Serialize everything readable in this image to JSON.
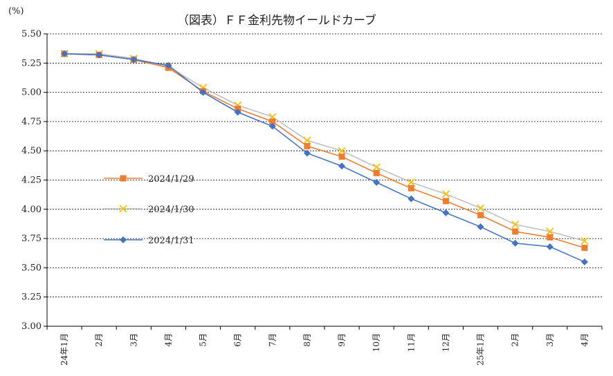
{
  "chart_data": {
    "type": "line",
    "title": "（図表）ＦＦ金利先物イールドカーブ",
    "ylabel": "(%)",
    "xlabel": "",
    "ylim": [
      3.0,
      5.5
    ],
    "yticks": [
      "5.50",
      "5.25",
      "5.00",
      "4.75",
      "4.50",
      "4.25",
      "4.00",
      "3.75",
      "3.50",
      "3.25",
      "3.00"
    ],
    "ytick_values": [
      5.5,
      5.25,
      5.0,
      4.75,
      4.5,
      4.25,
      4.0,
      3.75,
      3.5,
      3.25,
      3.0
    ],
    "categories": [
      "24年1月",
      "2月",
      "3月",
      "4月",
      "5月",
      "6月",
      "7月",
      "8月",
      "9月",
      "10月",
      "11月",
      "12月",
      "25年1月",
      "2月",
      "3月",
      "4月"
    ],
    "grid": true,
    "legend_position": "left-middle",
    "series": [
      {
        "name": "2024/1/29",
        "color": "#ED7D31",
        "marker": "square",
        "values": [
          5.33,
          5.32,
          5.28,
          5.21,
          5.01,
          4.86,
          4.75,
          4.54,
          4.45,
          4.31,
          4.18,
          4.07,
          3.95,
          3.81,
          3.76,
          3.67
        ]
      },
      {
        "name": "2024/1/30",
        "color": "#BFBFBF",
        "marker_color": "#FFC000",
        "marker": "x",
        "values": [
          5.33,
          5.33,
          5.29,
          5.22,
          5.04,
          4.89,
          4.79,
          4.59,
          4.5,
          4.36,
          4.23,
          4.13,
          4.01,
          3.87,
          3.81,
          3.73
        ]
      },
      {
        "name": "2024/1/31",
        "color": "#4472C4",
        "marker": "diamond",
        "values": [
          5.33,
          5.32,
          5.28,
          5.23,
          5.0,
          4.83,
          4.71,
          4.48,
          4.37,
          4.23,
          4.09,
          3.97,
          3.85,
          3.71,
          3.68,
          3.55
        ]
      }
    ]
  }
}
